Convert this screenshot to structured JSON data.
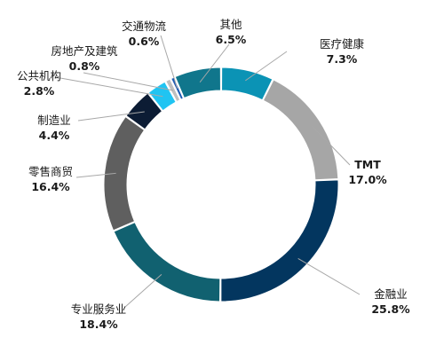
{
  "chart_data": {
    "type": "pie",
    "variant": "donut",
    "title": "",
    "slices": [
      {
        "label": "医疗健康",
        "value": 7.3,
        "value_label": "7.3%",
        "color": "#0b93b5",
        "bold_label": false
      },
      {
        "label": "TMT",
        "value": 17.0,
        "value_label": "17.0%",
        "color": "#a6a6a6",
        "bold_label": true
      },
      {
        "label": "金融业",
        "value": 25.8,
        "value_label": "25.8%",
        "color": "#03365f",
        "bold_label": false
      },
      {
        "label": "专业服务业",
        "value": 18.4,
        "value_label": "18.4%",
        "color": "#116170",
        "bold_label": false
      },
      {
        "label": "零售商贸",
        "value": 16.4,
        "value_label": "16.4%",
        "color": "#5f5f5f",
        "bold_label": false
      },
      {
        "label": "制造业",
        "value": 4.4,
        "value_label": "4.4%",
        "color": "#0c1c34",
        "bold_label": false
      },
      {
        "label": "公共机构",
        "value": 2.8,
        "value_label": "2.8%",
        "color": "#20c4f2",
        "bold_label": false
      },
      {
        "label": "房地产及建筑",
        "value": 0.8,
        "value_label": "0.8%",
        "color": "#bfbfbf",
        "bold_label": false
      },
      {
        "label": "交通物流",
        "value": 0.6,
        "value_label": "0.6%",
        "color": "#1d5bb5",
        "bold_label": false
      },
      {
        "label": "其他",
        "value": 6.5,
        "value_label": "6.5%",
        "color": "#10768c",
        "bold_label": false
      }
    ],
    "start": "top, clockwise",
    "legend": "none"
  }
}
